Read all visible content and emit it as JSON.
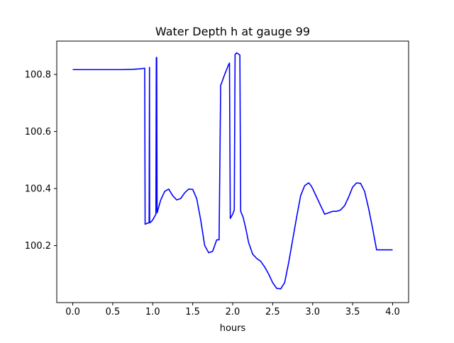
{
  "chart_data": {
    "type": "line",
    "title": "Water Depth h at gauge 99",
    "xlabel": "hours",
    "ylabel": "",
    "xlim": [
      -0.2,
      4.2
    ],
    "ylim": [
      100.0,
      100.917
    ],
    "xticks": [
      0.0,
      0.5,
      1.0,
      1.5,
      2.0,
      2.5,
      3.0,
      3.5,
      4.0
    ],
    "xtick_labels": [
      "0.0",
      "0.5",
      "1.0",
      "1.5",
      "2.0",
      "2.5",
      "3.0",
      "3.5",
      "4.0"
    ],
    "yticks": [
      100.2,
      100.4,
      100.6,
      100.8
    ],
    "ytick_labels": [
      "100.2",
      "100.4",
      "100.6",
      "100.8"
    ],
    "grid": false,
    "series": [
      {
        "color": "#0000ff",
        "x": [
          0.0,
          0.2,
          0.4,
          0.6,
          0.75,
          0.85,
          0.9,
          0.905,
          0.93,
          0.955,
          0.96,
          0.962,
          0.975,
          1.0,
          1.04,
          1.045,
          1.05,
          1.055,
          1.1,
          1.15,
          1.2,
          1.25,
          1.3,
          1.35,
          1.4,
          1.45,
          1.5,
          1.55,
          1.6,
          1.65,
          1.7,
          1.75,
          1.8,
          1.83,
          1.85,
          1.855,
          1.9,
          1.95,
          1.96,
          1.97,
          2.0,
          2.02,
          2.03,
          2.05,
          2.08,
          2.09,
          2.1,
          2.13,
          2.16,
          2.2,
          2.25,
          2.3,
          2.35,
          2.4,
          2.45,
          2.5,
          2.55,
          2.6,
          2.65,
          2.7,
          2.75,
          2.8,
          2.85,
          2.9,
          2.95,
          2.98,
          3.0,
          3.05,
          3.1,
          3.15,
          3.2,
          3.25,
          3.3,
          3.35,
          3.4,
          3.45,
          3.5,
          3.55,
          3.6,
          3.65,
          3.7,
          3.75,
          3.8,
          3.85,
          3.9,
          3.95,
          4.0
        ],
        "y": [
          100.817,
          100.817,
          100.817,
          100.817,
          100.818,
          100.82,
          100.822,
          100.275,
          100.278,
          100.28,
          100.825,
          100.28,
          100.282,
          100.29,
          100.31,
          100.858,
          100.86,
          100.315,
          100.36,
          100.39,
          100.398,
          100.375,
          100.36,
          100.365,
          100.385,
          100.398,
          100.397,
          100.365,
          100.29,
          100.2,
          100.175,
          100.18,
          100.22,
          100.22,
          100.763,
          100.765,
          100.8,
          100.835,
          100.84,
          100.295,
          100.31,
          100.325,
          100.87,
          100.876,
          100.87,
          100.868,
          100.32,
          100.3,
          100.265,
          100.21,
          100.17,
          100.155,
          100.145,
          100.125,
          100.1,
          100.07,
          100.05,
          100.048,
          100.07,
          100.14,
          100.22,
          100.3,
          100.375,
          100.41,
          100.42,
          100.41,
          100.4,
          100.37,
          100.34,
          100.31,
          100.315,
          100.32,
          100.32,
          100.325,
          100.34,
          100.37,
          100.405,
          100.42,
          100.418,
          100.39,
          100.33,
          100.26,
          100.185,
          100.185,
          100.185,
          100.185,
          100.185
        ]
      }
    ]
  }
}
